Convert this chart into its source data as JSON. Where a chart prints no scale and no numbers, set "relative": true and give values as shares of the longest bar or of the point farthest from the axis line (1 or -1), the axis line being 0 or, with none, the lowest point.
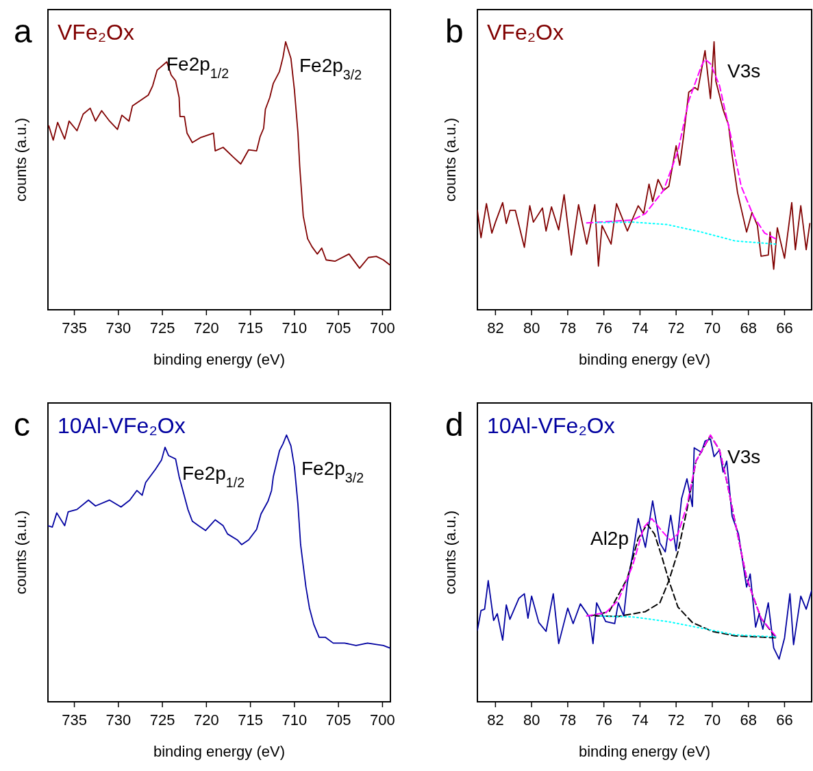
{
  "chart_data": [
    {
      "type": "line",
      "title": "VFe₂Ox",
      "xlabel": "binding energy (eV)",
      "ylabel": "counts (a.u.)",
      "relative": true,
      "xlim": [
        738,
        699.1
      ],
      "xticks": [
        735,
        730,
        725,
        720,
        715,
        710,
        705,
        700
      ],
      "annotations": [
        "a",
        "Fe2p$_{1/2}$",
        "Fe2p$_{3/2}$"
      ],
      "series": [
        {
          "color": "#800000",
          "x": [
            737.9,
            737.4,
            736.9,
            736.1,
            735.6,
            734.7,
            734.0,
            733.2,
            732.6,
            731.9,
            731.0,
            730.1,
            729.6,
            728.8,
            728.4,
            727.4,
            726.6,
            726.1,
            725.6,
            724.5,
            724.0,
            723.5,
            723.1,
            723.0,
            722.5,
            722.2,
            721.6,
            720.7,
            719.2,
            719.0,
            718.1,
            717.0,
            716.1,
            715.2,
            714.3,
            713.9,
            713.5,
            713.3,
            712.8,
            712.4,
            711.7,
            711.3,
            711.0,
            710.4,
            710.0,
            709.6,
            709.4,
            709.0,
            708.5,
            708.0,
            707.4,
            706.9,
            706.4,
            705.4,
            703.8,
            702.6,
            701.6,
            700.7,
            699.9,
            699.2
          ],
          "values": [
            0.686,
            0.633,
            0.699,
            0.637,
            0.704,
            0.668,
            0.73,
            0.752,
            0.704,
            0.743,
            0.704,
            0.673,
            0.726,
            0.704,
            0.761,
            0.783,
            0.801,
            0.836,
            0.894,
            0.925,
            0.876,
            0.854,
            0.792,
            0.721,
            0.721,
            0.659,
            0.624,
            0.642,
            0.659,
            0.593,
            0.606,
            0.571,
            0.544,
            0.597,
            0.593,
            0.646,
            0.677,
            0.748,
            0.792,
            0.845,
            0.889,
            0.942,
            1.0,
            0.938,
            0.819,
            0.659,
            0.535,
            0.35,
            0.265,
            0.235,
            0.208,
            0.23,
            0.186,
            0.181,
            0.208,
            0.155,
            0.195,
            0.199,
            0.186,
            0.168
          ]
        }
      ]
    },
    {
      "type": "line",
      "title": "VFe₂Ox",
      "xlabel": "binding energy (eV)",
      "ylabel": "counts (a.u.)",
      "relative": true,
      "xlim": [
        83,
        64.5
      ],
      "xticks": [
        82,
        80,
        78,
        76,
        74,
        72,
        70,
        68,
        66
      ],
      "annotations": [
        "b",
        "V3s"
      ],
      "series": [
        {
          "color": "#800000",
          "x": [
            83.0,
            82.8,
            82.5,
            82.2,
            82.0,
            81.6,
            81.4,
            81.2,
            80.9,
            80.4,
            80.1,
            79.9,
            79.4,
            79.2,
            78.9,
            78.5,
            78.2,
            77.8,
            77.4,
            76.95,
            76.5,
            76.3,
            76.1,
            75.6,
            75.3,
            74.7,
            74.1,
            73.8,
            73.5,
            73.3,
            73.0,
            72.7,
            72.4,
            72.0,
            71.8,
            71.6,
            71.3,
            70.96,
            70.8,
            70.4,
            70.1,
            69.9,
            69.8,
            69.4,
            69.1,
            68.9,
            68.6,
            68.1,
            67.8,
            67.5,
            67.3,
            66.9,
            66.8,
            66.6,
            66.4,
            66.0,
            65.6,
            65.4,
            65.1,
            64.8,
            64.6
          ],
          "values": [
            0.371,
            0.269,
            0.396,
            0.286,
            0.327,
            0.4,
            0.322,
            0.371,
            0.371,
            0.233,
            0.388,
            0.327,
            0.38,
            0.294,
            0.384,
            0.298,
            0.429,
            0.204,
            0.392,
            0.245,
            0.392,
            0.163,
            0.314,
            0.245,
            0.396,
            0.294,
            0.388,
            0.359,
            0.469,
            0.404,
            0.486,
            0.445,
            0.461,
            0.612,
            0.539,
            0.641,
            0.812,
            0.829,
            0.82,
            0.967,
            0.788,
            1.0,
            0.853,
            0.747,
            0.69,
            0.576,
            0.437,
            0.29,
            0.363,
            0.314,
            0.2,
            0.204,
            0.29,
            0.151,
            0.306,
            0.192,
            0.4,
            0.224,
            0.388,
            0.224,
            0.322
          ]
        },
        {
          "color": "#ff00ff",
          "line_style": "dashed",
          "x": [
            76.95,
            74.4,
            73.7,
            72.7,
            71.9,
            71.3,
            70.6,
            70.4,
            70.1,
            69.6,
            69.0,
            68.4,
            67.7,
            67.1,
            66.5
          ],
          "values": [
            0.324,
            0.335,
            0.359,
            0.445,
            0.592,
            0.78,
            0.91,
            0.935,
            0.918,
            0.837,
            0.657,
            0.461,
            0.347,
            0.286,
            0.265
          ]
        },
        {
          "color": "#00ffff",
          "line_style": "dotted",
          "x": [
            76.45,
            74.4,
            72.5,
            70.6,
            68.75,
            66.5
          ],
          "values": [
            0.325,
            0.327,
            0.318,
            0.29,
            0.257,
            0.245
          ]
        }
      ]
    },
    {
      "type": "line",
      "title": "10Al-VFe₂Ox",
      "xlabel": "binding energy (eV)",
      "ylabel": "counts (a.u.)",
      "relative": true,
      "xlim": [
        738,
        699.1
      ],
      "xticks": [
        735,
        730,
        725,
        720,
        715,
        710,
        705,
        700
      ],
      "annotations": [
        "c",
        "Fe2p$_{1/2}$",
        "Fe2p$_{3/2}$"
      ],
      "series": [
        {
          "color": "#0000a0",
          "x": [
            738.0,
            737.5,
            737.0,
            736.1,
            735.7,
            734.7,
            733.4,
            732.6,
            731.0,
            729.7,
            728.7,
            727.9,
            727.3,
            726.9,
            725.8,
            725.1,
            724.7,
            724.3,
            723.5,
            723.1,
            722.6,
            722.1,
            721.6,
            720.9,
            720.1,
            719.0,
            718.1,
            717.6,
            716.5,
            716.0,
            715.2,
            714.3,
            713.8,
            713.0,
            712.6,
            712.4,
            711.7,
            711.3,
            710.9,
            710.4,
            710.0,
            709.6,
            709.3,
            708.7,
            708.3,
            707.8,
            707.2,
            706.5,
            705.6,
            704.3,
            703.0,
            701.7,
            700.7,
            699.9,
            699.2
          ],
          "values": [
            0.66,
            0.655,
            0.708,
            0.66,
            0.712,
            0.721,
            0.756,
            0.734,
            0.756,
            0.73,
            0.756,
            0.792,
            0.774,
            0.822,
            0.871,
            0.906,
            0.954,
            0.923,
            0.91,
            0.844,
            0.783,
            0.721,
            0.677,
            0.66,
            0.642,
            0.682,
            0.66,
            0.629,
            0.607,
            0.589,
            0.607,
            0.646,
            0.704,
            0.752,
            0.792,
            0.844,
            0.941,
            0.967,
            1.0,
            0.959,
            0.88,
            0.739,
            0.589,
            0.431,
            0.352,
            0.29,
            0.242,
            0.242,
            0.22,
            0.22,
            0.211,
            0.22,
            0.215,
            0.211,
            0.202
          ]
        }
      ]
    },
    {
      "type": "line",
      "title": "10Al-VFe₂Ox",
      "xlabel": "binding energy (eV)",
      "ylabel": "counts (a.u.)",
      "relative": true,
      "xlim": [
        83,
        64.5
      ],
      "xticks": [
        82,
        80,
        78,
        76,
        74,
        72,
        70,
        68,
        66
      ],
      "annotations": [
        "d",
        "V3s",
        "Al2p"
      ],
      "series": [
        {
          "color": "#0000a0",
          "x": [
            83.0,
            82.8,
            82.6,
            82.4,
            82.1,
            81.9,
            81.6,
            81.4,
            81.2,
            80.7,
            80.4,
            80.2,
            80.0,
            79.6,
            79.2,
            78.8,
            78.5,
            78.0,
            77.7,
            77.3,
            76.8,
            76.6,
            76.4,
            75.9,
            75.4,
            75.2,
            74.9,
            74.7,
            74.4,
            74.1,
            73.7,
            73.3,
            72.9,
            72.6,
            72.3,
            72.0,
            71.7,
            71.4,
            71.1,
            71.0,
            70.6,
            70.4,
            70.1,
            69.9,
            69.6,
            69.4,
            69.2,
            68.9,
            68.55,
            68.1,
            67.9,
            67.6,
            67.4,
            67.2,
            66.9,
            66.6,
            66.3,
            66.0,
            65.7,
            65.5,
            65.1,
            64.8,
            64.5
          ],
          "values": [
            0.268,
            0.342,
            0.347,
            0.454,
            0.305,
            0.33,
            0.231,
            0.363,
            0.309,
            0.388,
            0.405,
            0.313,
            0.396,
            0.297,
            0.264,
            0.405,
            0.218,
            0.351,
            0.293,
            0.367,
            0.318,
            0.218,
            0.371,
            0.301,
            0.293,
            0.371,
            0.322,
            0.446,
            0.554,
            0.687,
            0.579,
            0.753,
            0.595,
            0.562,
            0.699,
            0.566,
            0.761,
            0.836,
            0.732,
            0.952,
            0.935,
            0.977,
            0.985,
            0.919,
            0.944,
            0.861,
            0.902,
            0.695,
            0.629,
            0.43,
            0.479,
            0.28,
            0.33,
            0.272,
            0.371,
            0.202,
            0.16,
            0.239,
            0.405,
            0.214,
            0.396,
            0.347,
            0.417
          ]
        },
        {
          "color": "#000000",
          "line_style": "dashed",
          "x": [
            76.7,
            75.7,
            74.7,
            74.1,
            73.6,
            73.2,
            72.8,
            72.4,
            71.9,
            71.1,
            70.0,
            68.75,
            66.5
          ],
          "values": [
            0.322,
            0.338,
            0.463,
            0.612,
            0.666,
            0.629,
            0.546,
            0.454,
            0.355,
            0.297,
            0.264,
            0.247,
            0.24
          ]
        },
        {
          "color": "#000000",
          "line_style": "dashed",
          "x": [
            76.45,
            75.2,
            73.7,
            72.9,
            72.4,
            71.9,
            71.4,
            70.9,
            70.1,
            69.6,
            69.2,
            68.7,
            68.1,
            67.3,
            66.5
          ],
          "values": [
            0.322,
            0.32,
            0.338,
            0.371,
            0.454,
            0.562,
            0.72,
            0.902,
            0.998,
            0.944,
            0.828,
            0.662,
            0.463,
            0.313,
            0.243
          ]
        },
        {
          "color": "#ff00ff",
          "line_style": "dashed",
          "x": [
            76.95,
            75.9,
            75.2,
            74.4,
            73.8,
            73.35,
            72.8,
            72.3,
            71.9,
            71.4,
            70.9,
            70.1,
            69.6,
            69.2,
            68.7,
            68.1,
            67.3,
            66.5
          ],
          "values": [
            0.322,
            0.334,
            0.38,
            0.512,
            0.653,
            0.687,
            0.641,
            0.604,
            0.629,
            0.736,
            0.902,
            1.0,
            0.944,
            0.828,
            0.662,
            0.463,
            0.313,
            0.247
          ]
        },
        {
          "color": "#00ffff",
          "line_style": "dotted",
          "x": [
            76.2,
            74.4,
            72.5,
            70.6,
            68.75,
            66.5
          ],
          "values": [
            0.321,
            0.318,
            0.301,
            0.276,
            0.251,
            0.243
          ]
        }
      ]
    }
  ]
}
